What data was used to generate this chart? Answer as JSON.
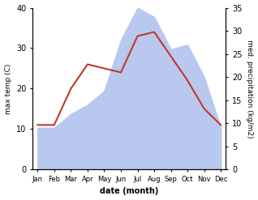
{
  "months": [
    "Jan",
    "Feb",
    "Mar",
    "Apr",
    "May",
    "Jun",
    "Jul",
    "Aug",
    "Sep",
    "Oct",
    "Nov",
    "Dec"
  ],
  "temperature": [
    11,
    11,
    20,
    26,
    25,
    24,
    33,
    34,
    28,
    22,
    15,
    11
  ],
  "precipitation": [
    9,
    9,
    12,
    14,
    17,
    28,
    35,
    33,
    26,
    27,
    20,
    9
  ],
  "temp_color": "#c0392b",
  "precip_color_fill": "#b8c8ee",
  "left_label": "max temp (C)",
  "right_label": "med. precipitation (kg/m2)",
  "xlabel": "date (month)",
  "ylim_left": [
    0,
    40
  ],
  "ylim_right": [
    0,
    35
  ],
  "background_color": "#ffffff"
}
